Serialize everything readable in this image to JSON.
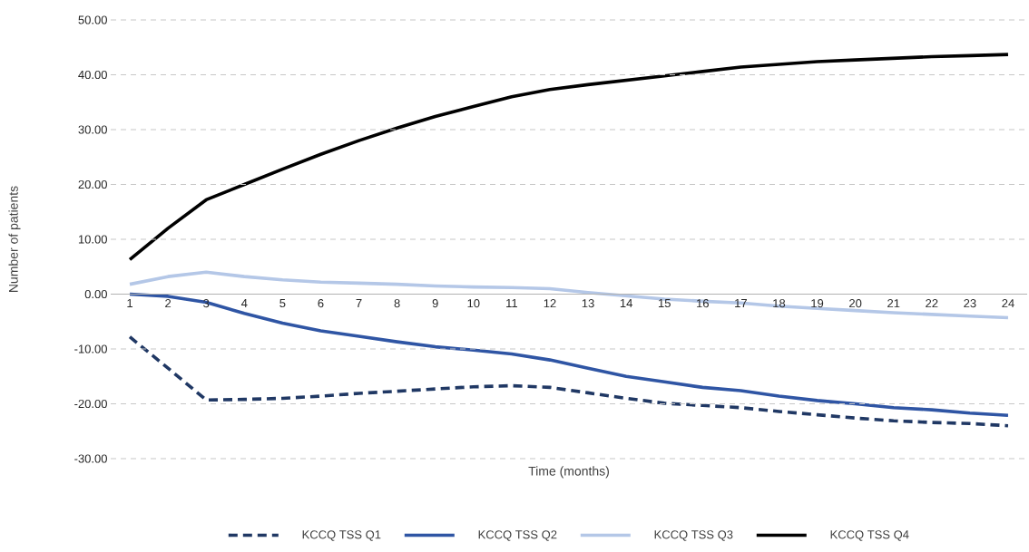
{
  "chart_data": {
    "type": "line",
    "xlabel": "Time (months)",
    "ylabel": "Number of patients",
    "categories": [
      "1",
      "2",
      "3",
      "4",
      "5",
      "6",
      "7",
      "8",
      "9",
      "10",
      "11",
      "12",
      "13",
      "14",
      "15",
      "16",
      "17",
      "18",
      "19",
      "20",
      "21",
      "22",
      "23",
      "24"
    ],
    "series": [
      {
        "name": "KCCQ TSS Q1",
        "color": "#203864",
        "line_style": "dashed",
        "values": [
          -7.8,
          -13.5,
          -19.3,
          -19.2,
          -19.0,
          -18.6,
          -18.1,
          -17.7,
          -17.3,
          -16.9,
          -16.7,
          -17.0,
          -18.0,
          -19.0,
          -19.9,
          -20.3,
          -20.7,
          -21.4,
          -22.0,
          -22.6,
          -23.1,
          -23.4,
          -23.6,
          -24.0
        ]
      },
      {
        "name": "KCCQ TSS Q2",
        "color": "#2f55a4",
        "line_style": "solid",
        "values": [
          0.0,
          -0.4,
          -1.5,
          -3.5,
          -5.3,
          -6.7,
          -7.7,
          -8.7,
          -9.6,
          -10.2,
          -10.9,
          -12.0,
          -13.5,
          -15.0,
          -16.0,
          -17.0,
          -17.6,
          -18.6,
          -19.4,
          -20.0,
          -20.7,
          -21.1,
          -21.7,
          -22.1
        ]
      },
      {
        "name": "KCCQ TSS Q3",
        "color": "#b4c7e7",
        "line_style": "solid",
        "values": [
          1.8,
          3.2,
          4.0,
          3.2,
          2.6,
          2.2,
          2.0,
          1.8,
          1.5,
          1.3,
          1.2,
          1.0,
          0.3,
          -0.3,
          -0.9,
          -1.3,
          -1.6,
          -2.2,
          -2.6,
          -3.0,
          -3.4,
          -3.7,
          -4.0,
          -4.3
        ]
      },
      {
        "name": "KCCQ TSS Q4",
        "color": "#000000",
        "line_style": "solid",
        "values": [
          6.3,
          12.0,
          17.2,
          20.0,
          22.8,
          25.5,
          28.0,
          30.3,
          32.4,
          34.2,
          36.0,
          37.3,
          38.2,
          39.0,
          39.8,
          40.6,
          41.4,
          41.9,
          42.4,
          42.7,
          43.0,
          43.3,
          43.5,
          43.7
        ]
      }
    ],
    "ylim": [
      -30,
      50
    ],
    "yticks": [
      {
        "value": -30,
        "label": "-30.00"
      },
      {
        "value": -20,
        "label": "-20.00"
      },
      {
        "value": -10,
        "label": "-10.00"
      },
      {
        "value": 0,
        "label": "0.00"
      },
      {
        "value": 10,
        "label": "10.00"
      },
      {
        "value": 20,
        "label": "20.00"
      },
      {
        "value": 30,
        "label": "30.00"
      },
      {
        "value": 40,
        "label": "40.00"
      },
      {
        "value": 50,
        "label": "50.00"
      }
    ],
    "grid": "y",
    "legend": "bottom"
  }
}
